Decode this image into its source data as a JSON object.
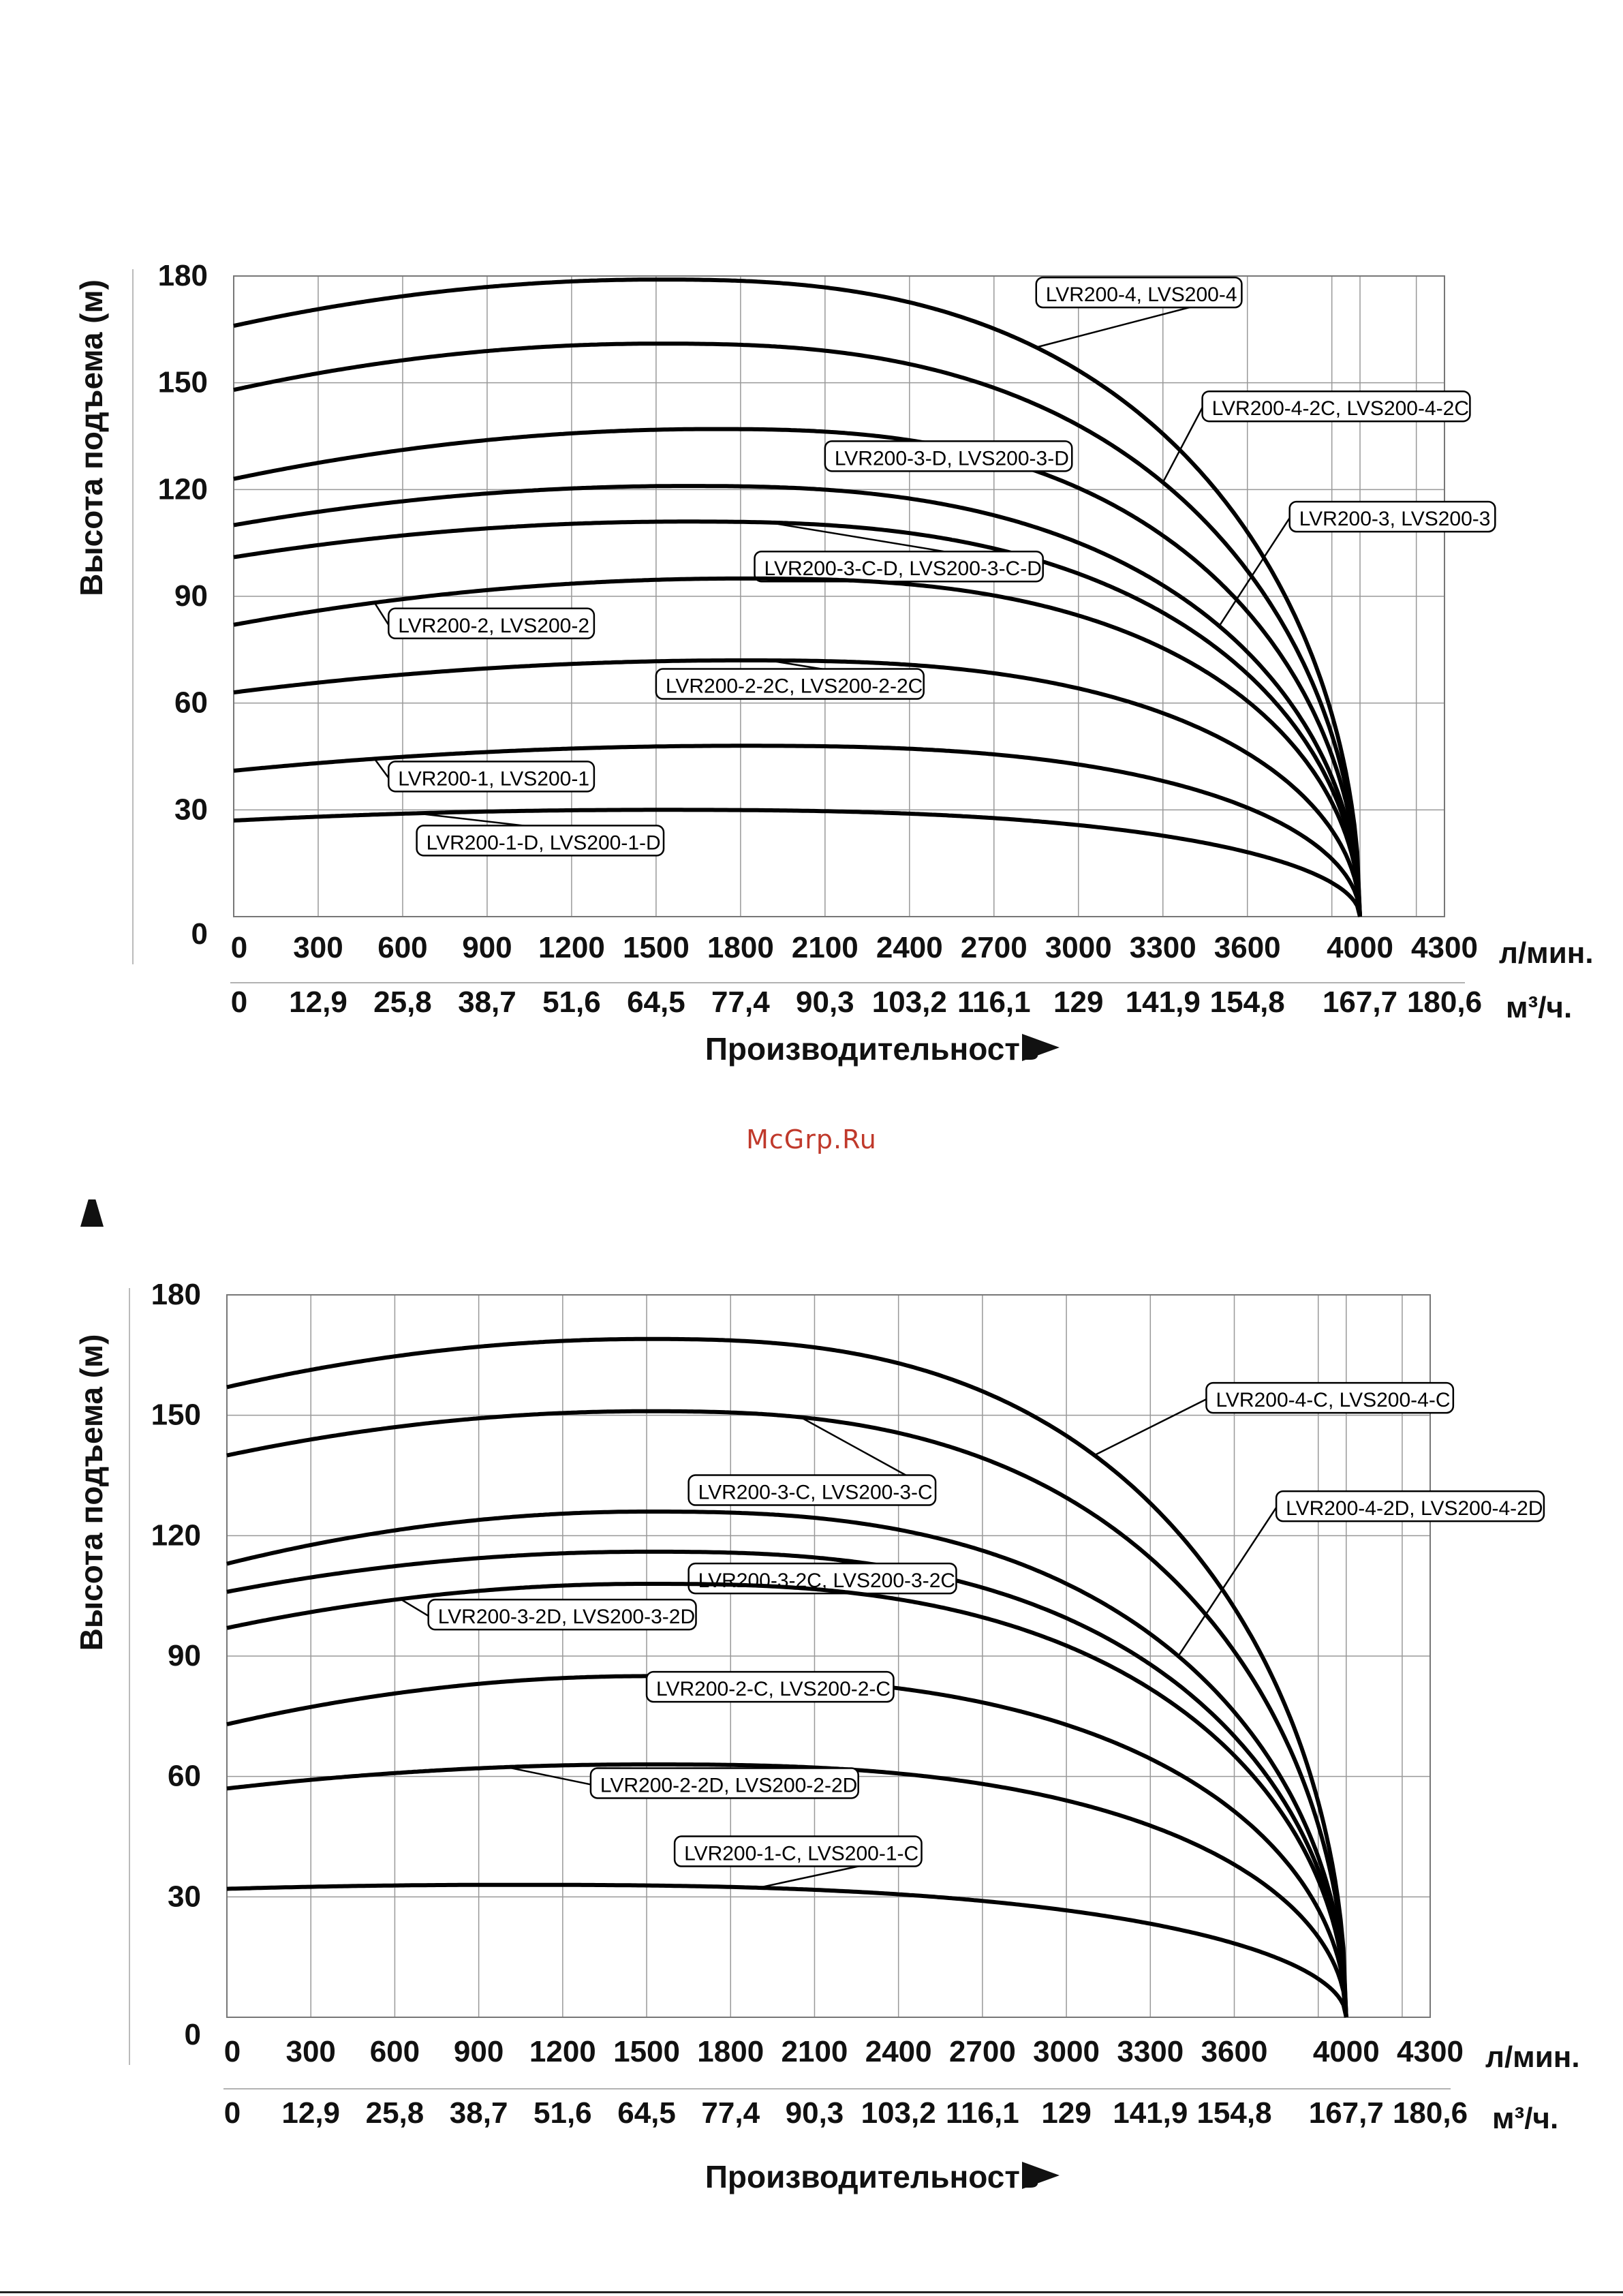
{
  "watermark": "McGrp.Ru",
  "chart_data": [
    {
      "type": "line",
      "title": "",
      "ylabel": "Высота подъема (м)",
      "xlabel": "Производительность",
      "ylim": [
        0,
        180
      ],
      "yticks": [
        "0",
        "30",
        "60",
        "90",
        "120",
        "150",
        "180"
      ],
      "xlim": [
        0,
        4300
      ],
      "xunit_top": "л/мин.",
      "xunit_bottom": "м³/ч.",
      "xticks_top": [
        "0",
        "300",
        "600",
        "900",
        "1200",
        "1500",
        "1800",
        "2100",
        "2400",
        "2700",
        "3000",
        "3300",
        "3600",
        "4000",
        "4300"
      ],
      "xticks_bottom": [
        "0",
        "12,9",
        "25,8",
        "38,7",
        "51,6",
        "64,5",
        "77,4",
        "90,3",
        "103,2",
        "116,1",
        "129",
        "141,9",
        "154,8",
        "167,7",
        "180,6"
      ],
      "grid": true,
      "series": [
        {
          "name": "LVR200-4, LVS200-4",
          "x": [
            0,
            1500,
            4000
          ],
          "y": [
            166,
            179,
            0
          ],
          "label_anchor": [
            2850,
            165
          ],
          "label_box": [
            2850,
            175
          ]
        },
        {
          "name": "LVR200-4-2C, LVS200-4-2C",
          "x": [
            0,
            1500,
            4000
          ],
          "y": [
            148,
            161,
            0
          ],
          "label_anchor": [
            3300,
            127
          ],
          "label_box": [
            3440,
            143
          ]
        },
        {
          "name": "LVR200-3-D, LVS200-3-D",
          "x": [
            0,
            1700,
            4000
          ],
          "y": [
            123,
            137,
            0
          ],
          "label_anchor": [
            2150,
            119
          ],
          "label_box": [
            2100,
            129
          ]
        },
        {
          "name": "LVR200-3, LVS200-3",
          "x": [
            0,
            1600,
            4000
          ],
          "y": [
            110,
            121,
            0
          ],
          "label_anchor": [
            3500,
            98
          ],
          "label_box": [
            3750,
            112
          ]
        },
        {
          "name": "LVR200-3-C-D, LVS200-3-C-D",
          "x": [
            0,
            1600,
            4000
          ],
          "y": [
            101,
            111,
            0
          ],
          "label_anchor": [
            1900,
            94
          ],
          "label_box": [
            1850,
            98
          ]
        },
        {
          "name": "LVR200-2, LVS200-2",
          "x": [
            0,
            1800,
            4000
          ],
          "y": [
            82,
            95,
            0
          ],
          "label_anchor": [
            500,
            87
          ],
          "label_box": [
            550,
            82
          ]
        },
        {
          "name": "LVR200-2-2C, LVS200-2-2C",
          "x": [
            0,
            1800,
            4000
          ],
          "y": [
            63,
            72,
            0
          ],
          "label_anchor": [
            1900,
            68
          ],
          "label_box": [
            1500,
            65
          ]
        },
        {
          "name": "LVR200-1, LVS200-1",
          "x": [
            0,
            1800,
            4000
          ],
          "y": [
            41,
            48,
            0
          ],
          "label_anchor": [
            500,
            43
          ],
          "label_box": [
            550,
            39
          ]
        },
        {
          "name": "LVR200-1-D, LVS200-1-D",
          "x": [
            0,
            1500,
            4000
          ],
          "y": [
            27,
            30,
            0
          ],
          "label_anchor": [
            650,
            30
          ],
          "label_box": [
            650,
            21
          ]
        }
      ]
    },
    {
      "type": "line",
      "title": "",
      "ylabel": "Высота подъема (м)",
      "xlabel": "Производительность",
      "ylim": [
        0,
        180
      ],
      "yticks": [
        "0",
        "30",
        "60",
        "90",
        "120",
        "150",
        "180"
      ],
      "xlim": [
        0,
        4300
      ],
      "xunit_top": "л/мин.",
      "xunit_bottom": "м³/ч.",
      "xticks_top": [
        "0",
        "300",
        "600",
        "900",
        "1200",
        "1500",
        "1800",
        "2100",
        "2400",
        "2700",
        "3000",
        "3300",
        "3600",
        "4000",
        "4300"
      ],
      "xticks_bottom": [
        "0",
        "12,9",
        "25,8",
        "38,7",
        "51,6",
        "64,5",
        "77,4",
        "90,3",
        "103,2",
        "116,1",
        "129",
        "141,9",
        "154,8",
        "167,7",
        "180,6"
      ],
      "grid": true,
      "series": [
        {
          "name": "LVR200-4-C, LVS200-4-C",
          "x": [
            0,
            1500,
            4000
          ],
          "y": [
            157,
            169,
            0
          ],
          "label_anchor": [
            3100,
            142
          ],
          "label_box": [
            3500,
            154
          ]
        },
        {
          "name": "LVR200-3-C, LVS200-3-C",
          "x": [
            0,
            1500,
            4000
          ],
          "y": [
            140,
            151,
            0
          ],
          "label_anchor": [
            2050,
            132
          ],
          "label_box": [
            1650,
            131
          ]
        },
        {
          "name": "LVR200-4-2D, LVS200-4-2D",
          "x": [
            0,
            1500,
            4000
          ],
          "y": [
            113,
            126,
            0
          ],
          "label_anchor": [
            3400,
            110
          ],
          "label_box": [
            3750,
            127
          ]
        },
        {
          "name": "LVR200-3-2C, LVS200-3-2C",
          "x": [
            0,
            1500,
            4000
          ],
          "y": [
            106,
            116,
            0
          ],
          "label_anchor": [
            2100,
            111
          ],
          "label_box": [
            1650,
            109
          ]
        },
        {
          "name": "LVR200-3-2D, LVS200-3-2D",
          "x": [
            0,
            1500,
            4000
          ],
          "y": [
            97,
            108,
            0
          ],
          "label_anchor": [
            620,
            104
          ],
          "label_box": [
            720,
            100
          ]
        },
        {
          "name": "LVR200-2-C, LVS200-2-C",
          "x": [
            0,
            1500,
            4000
          ],
          "y": [
            73,
            85,
            0
          ],
          "label_anchor": [
            1900,
            85
          ],
          "label_box": [
            1500,
            82
          ]
        },
        {
          "name": "LVR200-2-2D, LVS200-2-2D",
          "x": [
            0,
            1500,
            4000
          ],
          "y": [
            57,
            63,
            0
          ],
          "label_anchor": [
            1000,
            62
          ],
          "label_box": [
            1300,
            58
          ]
        },
        {
          "name": "LVR200-1-C, LVS200-1-C",
          "x": [
            0,
            1000,
            4000
          ],
          "y": [
            32,
            33,
            0
          ],
          "label_anchor": [
            1900,
            33
          ],
          "label_box": [
            1600,
            41
          ]
        }
      ]
    }
  ]
}
